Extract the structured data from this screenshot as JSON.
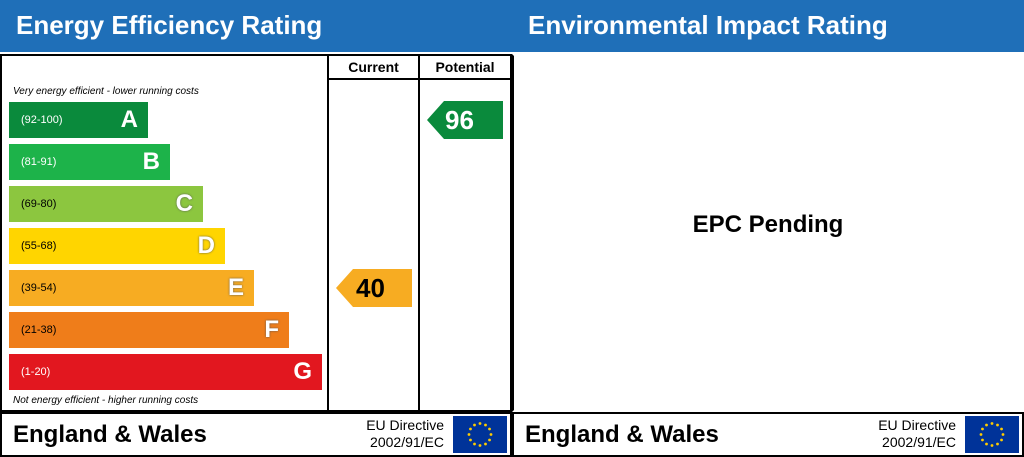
{
  "energy": {
    "title": "Energy Efficiency Rating",
    "col_current": "Current",
    "col_potential": "Potential",
    "top_caption": "Very energy efficient - lower running costs",
    "bottom_caption": "Not energy efficient - higher running costs",
    "footer_region": "England & Wales",
    "directive_line1": "EU Directive",
    "directive_line2": "2002/91/EC"
  },
  "environmental": {
    "title": "Environmental Impact Rating",
    "status": "EPC Pending",
    "footer_region": "England & Wales",
    "directive_line1": "EU Directive",
    "directive_line2": "2002/91/EC"
  },
  "chart_data": {
    "type": "bar",
    "categories": [
      "A",
      "B",
      "C",
      "D",
      "E",
      "F",
      "G"
    ],
    "ranges": [
      "(92-100)",
      "(81-91)",
      "(69-80)",
      "(55-68)",
      "(39-54)",
      "(21-38)",
      "(1-20)"
    ],
    "colors": [
      "#0a8a3c",
      "#1db34a",
      "#8cc63f",
      "#ffd500",
      "#f7ac22",
      "#ef7d1a",
      "#e2171f"
    ],
    "current": {
      "value": 40,
      "band": "E",
      "color": "#f7ac22"
    },
    "potential": {
      "value": 96,
      "band": "A",
      "color": "#0a8a3c"
    }
  }
}
